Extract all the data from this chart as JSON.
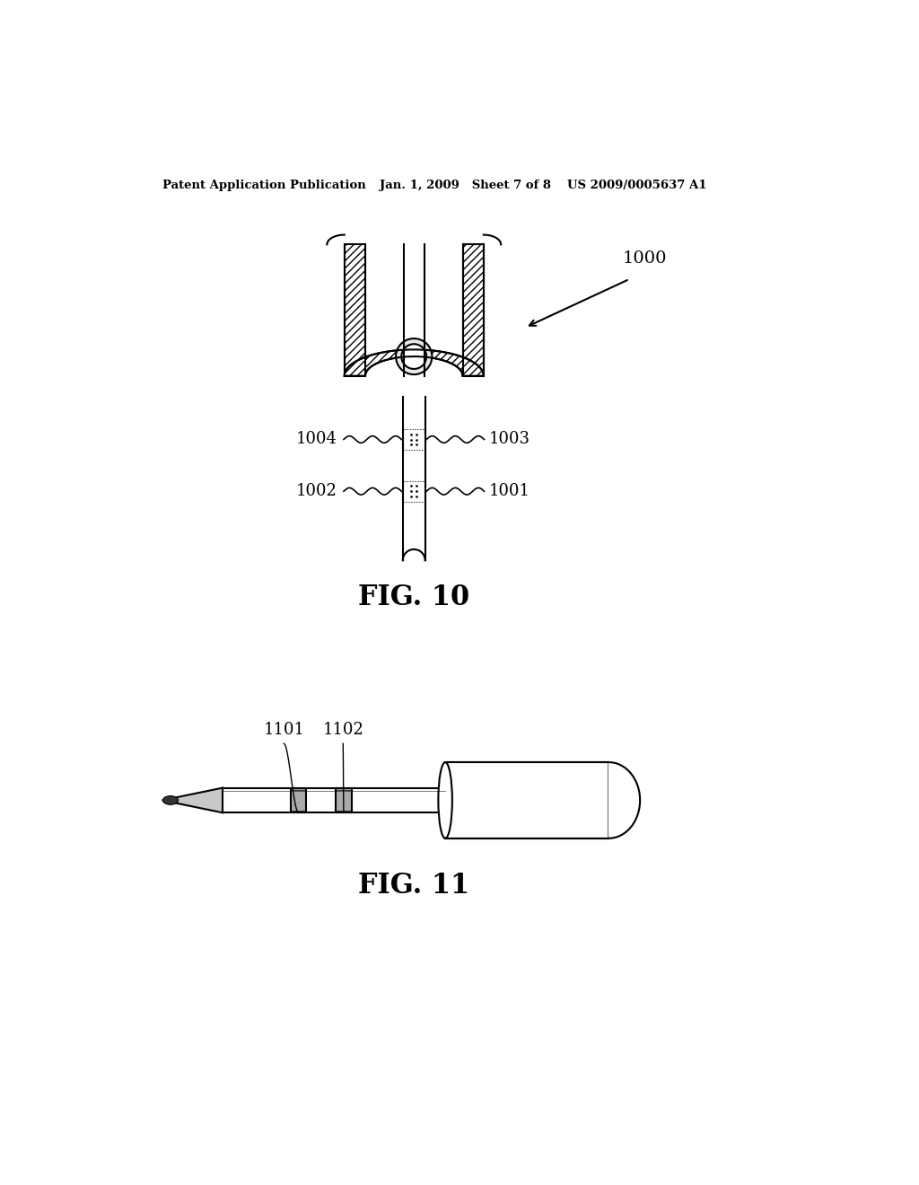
{
  "bg_color": "#ffffff",
  "header_left": "Patent Application Publication",
  "header_mid": "Jan. 1, 2009   Sheet 7 of 8",
  "header_right": "US 2009/0005637 A1",
  "fig10_label": "FIG. 10",
  "fig11_label": "FIG. 11",
  "ref_1000": "1000",
  "ref_1001": "1001",
  "ref_1002": "1002",
  "ref_1003": "1003",
  "ref_1004": "1004",
  "ref_1101": "1101",
  "ref_1102": "1102"
}
